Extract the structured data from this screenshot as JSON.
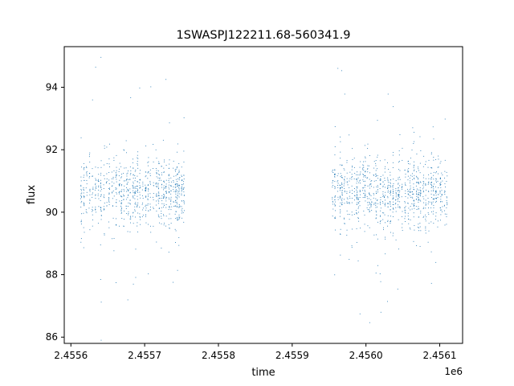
{
  "chart_data": {
    "type": "scatter",
    "title": "1SWASPJ122211.68-560341.9",
    "xlabel": "time",
    "ylabel": "flux",
    "x_offset_label": "1e6",
    "xlim": [
      2455591,
      2456131
    ],
    "ylim": [
      85.8,
      95.3
    ],
    "x_ticks": [
      2455600,
      2455700,
      2455800,
      2455900,
      2456000,
      2456100
    ],
    "x_tick_labels": [
      "2.4556",
      "2.4557",
      "2.4558",
      "2.4559",
      "2.4560",
      "2.4561"
    ],
    "y_ticks": [
      86,
      88,
      90,
      92,
      94
    ],
    "y_tick_labels": [
      "86",
      "88",
      "90",
      "92",
      "94"
    ],
    "grid": false,
    "legend": "none",
    "marker_color": "#1f77b4",
    "series": [
      {
        "segments": [
          {
            "x_start": 2455614,
            "x_end": 2455720,
            "flux_center": 90.6,
            "core_spread": 0.55,
            "outlier_min": 86.2,
            "outlier_max": 95.0
          },
          {
            "x_start": 2455720,
            "x_end": 2455755,
            "flux_center": 90.6,
            "core_spread": 0.5,
            "outlier_min": 86.3,
            "outlier_max": 94.8
          },
          {
            "x_start": 2455955,
            "x_end": 2456110,
            "flux_center": 90.6,
            "core_spread": 0.55,
            "outlier_min": 86.2,
            "outlier_max": 95.0
          }
        ]
      }
    ]
  }
}
